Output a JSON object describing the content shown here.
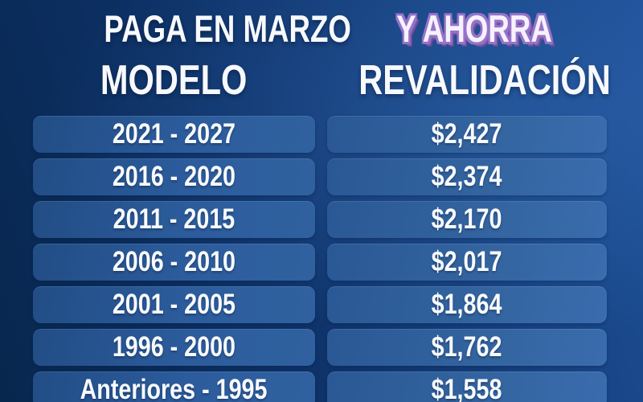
{
  "title": {
    "main": "PAGA EN MARZO",
    "highlight": "Y AHORRA"
  },
  "table": {
    "headers": {
      "model": "MODELO",
      "fee": "REVALIDACIÓN"
    },
    "rows": [
      {
        "model": "2021 - 2027",
        "fee": "$2,427"
      },
      {
        "model": "2016 - 2020",
        "fee": "$2,374"
      },
      {
        "model": "2011 - 2015",
        "fee": "$2,170"
      },
      {
        "model": "2006 - 2010",
        "fee": "$2,017"
      },
      {
        "model": "2001 - 2005",
        "fee": "$1,864"
      },
      {
        "model": "1996 - 2000",
        "fee": "$1,762"
      },
      {
        "model": "Anteriores - 1995",
        "fee": "$1,558"
      }
    ]
  },
  "chart_data": {
    "type": "table",
    "title": "PAGA EN MARZO Y AHORRA",
    "columns": [
      "MODELO",
      "REVALIDACIÓN"
    ],
    "rows": [
      [
        "2021 - 2027",
        "$2,427"
      ],
      [
        "2016 - 2020",
        "$2,374"
      ],
      [
        "2011 - 2015",
        "$2,170"
      ],
      [
        "2006 - 2010",
        "$2,017"
      ],
      [
        "2001 - 2005",
        "$1,864"
      ],
      [
        "1996 - 2000",
        "$1,762"
      ],
      [
        "Anteriores - 1995",
        "$1,558"
      ]
    ],
    "fees_numeric": [
      2427,
      2374,
      2170,
      2017,
      1864,
      1762,
      1558
    ]
  },
  "colors": {
    "background_dark": "#08274f",
    "background_light": "#1e5098",
    "pill_blue": "#2c5c9c",
    "accent_purple": "#9673c8",
    "accent_purple_dark": "#694a92",
    "text": "#ffffff"
  }
}
